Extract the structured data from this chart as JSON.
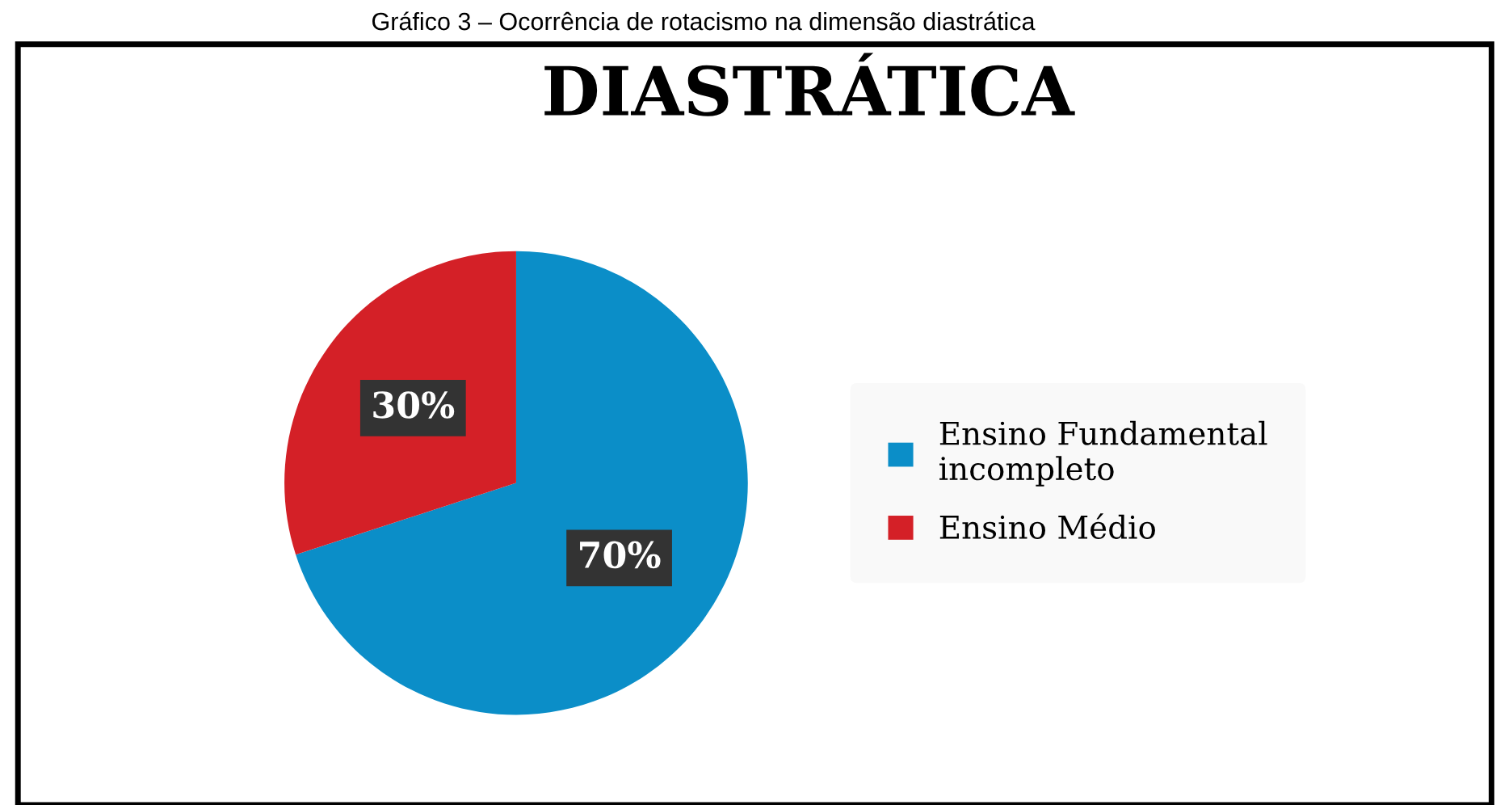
{
  "chart_data": {
    "type": "pie",
    "title": "DIASTRÁTICA",
    "annotations": [
      "Gráfico 3 – Ocorrência de rotacismo na dimensão diastrática"
    ],
    "categories": [
      "Ensino Fundamental incompleto",
      "Ensino Médio"
    ],
    "values": [
      70,
      30
    ],
    "colors": [
      "#0b8ec8",
      "#d42027"
    ],
    "value_labels": [
      "70%",
      "30%"
    ],
    "legend": "right"
  }
}
